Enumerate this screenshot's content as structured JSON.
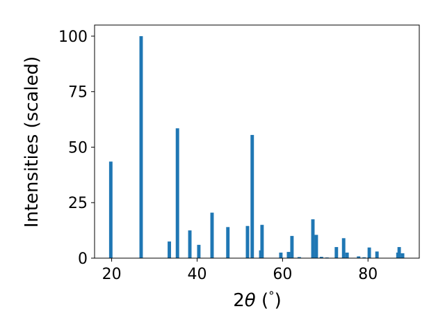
{
  "chart_data": {
    "type": "bar",
    "xlabel": "2θ (°)",
    "xlabel_parts": {
      "pre": "2",
      "sym": "θ",
      "post": " (",
      "unit": "°",
      "close": ")"
    },
    "ylabel": "Intensities (scaled)",
    "xlim": [
      16,
      92
    ],
    "ylim": [
      0,
      105
    ],
    "xticks": [
      20,
      40,
      60,
      80
    ],
    "yticks": [
      0,
      25,
      50,
      75,
      100
    ],
    "bar_width": 0.8,
    "bar_color": "#1f77b4",
    "grid": false,
    "legend": "none",
    "peaks": [
      {
        "x": 19.8,
        "y": 43.5
      },
      {
        "x": 26.9,
        "y": 100
      },
      {
        "x": 33.5,
        "y": 7.5
      },
      {
        "x": 35.4,
        "y": 58.5
      },
      {
        "x": 38.3,
        "y": 12.5
      },
      {
        "x": 40.4,
        "y": 6.0
      },
      {
        "x": 43.5,
        "y": 20.5
      },
      {
        "x": 47.2,
        "y": 14.0
      },
      {
        "x": 51.8,
        "y": 14.5
      },
      {
        "x": 52.9,
        "y": 55.5
      },
      {
        "x": 54.9,
        "y": 3.5
      },
      {
        "x": 55.2,
        "y": 15.0
      },
      {
        "x": 59.6,
        "y": 2.5
      },
      {
        "x": 61.4,
        "y": 2.8
      },
      {
        "x": 62.2,
        "y": 10.0
      },
      {
        "x": 63.9,
        "y": 0.5
      },
      {
        "x": 67.1,
        "y": 17.5
      },
      {
        "x": 67.9,
        "y": 10.5
      },
      {
        "x": 69.1,
        "y": 0.6
      },
      {
        "x": 70.4,
        "y": 0.3
      },
      {
        "x": 72.6,
        "y": 5.0
      },
      {
        "x": 74.3,
        "y": 9.0
      },
      {
        "x": 75.1,
        "y": 2.5
      },
      {
        "x": 77.8,
        "y": 0.8
      },
      {
        "x": 79.1,
        "y": 0.4
      },
      {
        "x": 80.3,
        "y": 4.8
      },
      {
        "x": 82.1,
        "y": 3.0
      },
      {
        "x": 87.0,
        "y": 2.5
      },
      {
        "x": 87.3,
        "y": 5.0
      },
      {
        "x": 88.1,
        "y": 2.2
      }
    ]
  }
}
